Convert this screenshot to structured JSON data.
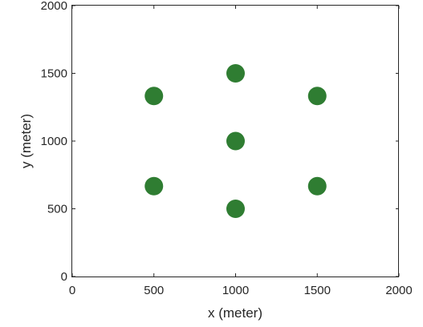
{
  "chart_data": {
    "type": "scatter",
    "title": "",
    "xlabel": "x (meter)",
    "ylabel": "y (meter)",
    "xlim": [
      0,
      2000
    ],
    "ylim": [
      0,
      2000
    ],
    "xticks": [
      0,
      500,
      1000,
      1500,
      2000
    ],
    "yticks": [
      0,
      500,
      1000,
      1500,
      2000
    ],
    "xtick_labels": [
      "0",
      "500",
      "1000",
      "1500",
      "2000"
    ],
    "ytick_labels": [
      "0",
      "500",
      "1000",
      "1500",
      "2000"
    ],
    "grid": false,
    "box": true,
    "marker_color": "#2f7d32",
    "series": [
      {
        "x": [
          1000,
          500,
          1500,
          1000,
          500,
          1500,
          1000
        ],
        "y": [
          1500,
          1333,
          1333,
          1000,
          667,
          667,
          500
        ]
      }
    ]
  }
}
